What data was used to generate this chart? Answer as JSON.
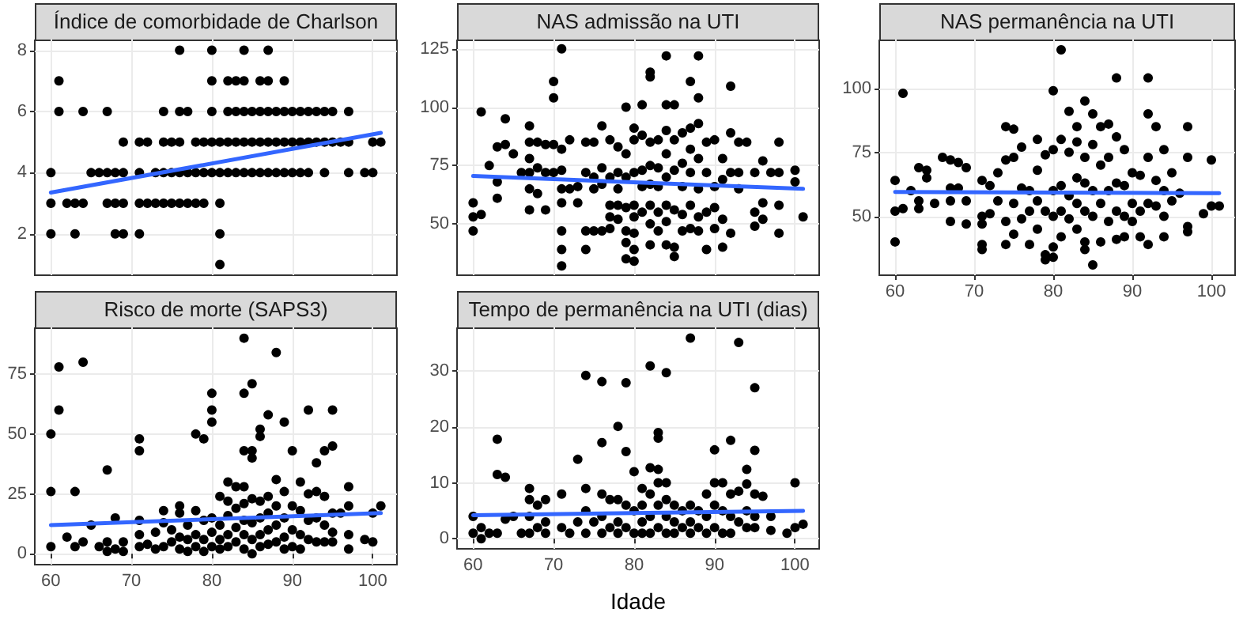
{
  "chart_data": [
    {
      "type": "scatter",
      "title": "Índice de comorbidade de Charlson",
      "xlim": [
        58,
        103
      ],
      "xticks": [
        60,
        70,
        80,
        90,
        100
      ],
      "ylim": [
        0.65,
        8.35
      ],
      "yticks": [
        2,
        4,
        6,
        8
      ],
      "grid": true,
      "tick_labels": "y",
      "series": [
        {
          "type": "scatter",
          "marker": "circle",
          "color": "#000000",
          "x": [
            76,
            80,
            84,
            87,
            61,
            80,
            82,
            83,
            84,
            86,
            87,
            89,
            61,
            64,
            67,
            74,
            76,
            77,
            80,
            82,
            83,
            84,
            85,
            86,
            87,
            88,
            89,
            90,
            91,
            92,
            93,
            94,
            95,
            97,
            69,
            71,
            72,
            74,
            75,
            76,
            78,
            79,
            80,
            81,
            82,
            83,
            84,
            85,
            86,
            87,
            88,
            89,
            90,
            91,
            92,
            93,
            94,
            95,
            96,
            97,
            100,
            101,
            60,
            65,
            66,
            67,
            68,
            69,
            71,
            73,
            74,
            75,
            76,
            77,
            78,
            79,
            80,
            81,
            82,
            83,
            84,
            85,
            86,
            87,
            88,
            89,
            90,
            91,
            92,
            94,
            97,
            99,
            100,
            60,
            62,
            63,
            64,
            67,
            68,
            69,
            71,
            72,
            73,
            74,
            75,
            76,
            77,
            78,
            79,
            81,
            60,
            63,
            68,
            69,
            71,
            81,
            81
          ],
          "values": [
            8,
            8,
            8,
            8,
            7,
            7,
            7,
            7,
            7,
            7,
            7,
            7,
            6,
            6,
            6,
            6,
            6,
            6,
            6,
            6,
            6,
            6,
            6,
            6,
            6,
            6,
            6,
            6,
            6,
            6,
            6,
            6,
            6,
            6,
            5,
            5,
            5,
            5,
            5,
            5,
            5,
            5,
            5,
            5,
            5,
            5,
            5,
            5,
            5,
            5,
            5,
            5,
            5,
            5,
            5,
            5,
            5,
            5,
            5,
            5,
            5,
            5,
            4,
            4,
            4,
            4,
            4,
            4,
            4,
            4,
            4,
            4,
            4,
            4,
            4,
            4,
            4,
            4,
            4,
            4,
            4,
            4,
            4,
            4,
            4,
            4,
            4,
            4,
            4,
            4,
            4,
            4,
            4,
            3,
            3,
            3,
            3,
            3,
            3,
            3,
            3,
            3,
            3,
            3,
            3,
            3,
            3,
            3,
            3,
            3,
            2,
            2,
            2,
            2,
            2,
            2,
            1
          ]
        },
        {
          "type": "line",
          "color": "#3366ff",
          "x": [
            60,
            101
          ],
          "values": [
            3.35,
            5.3
          ]
        }
      ]
    },
    {
      "type": "scatter",
      "title": "NAS admissão na UTI",
      "xlim": [
        58,
        103
      ],
      "xticks": [
        60,
        70,
        80,
        90,
        100
      ],
      "ylim": [
        28,
        129
      ],
      "yticks": [
        50,
        75,
        100,
        125
      ],
      "grid": true,
      "tick_labels": "y",
      "series": [
        {
          "type": "scatter",
          "marker": "circle",
          "color": "#000000",
          "x": [
            60,
            60,
            60,
            61,
            61,
            62,
            63,
            63,
            63,
            64,
            64,
            65,
            66,
            67,
            67,
            67,
            67,
            67,
            67,
            68,
            68,
            68,
            69,
            69,
            69,
            70,
            70,
            70,
            70,
            71,
            71,
            71,
            71,
            71,
            71,
            71,
            71,
            72,
            72,
            73,
            73,
            74,
            74,
            74,
            74,
            75,
            75,
            75,
            75,
            76,
            76,
            76,
            76,
            77,
            77,
            77,
            77,
            77,
            78,
            78,
            78,
            78,
            78,
            79,
            79,
            79,
            79,
            79,
            79,
            79,
            80,
            80,
            80,
            80,
            80,
            80,
            80,
            80,
            81,
            81,
            81,
            81,
            81,
            82,
            82,
            82,
            82,
            82,
            82,
            82,
            82,
            83,
            83,
            83,
            83,
            83,
            84,
            84,
            84,
            84,
            84,
            84,
            84,
            84,
            85,
            85,
            85,
            85,
            85,
            85,
            86,
            86,
            86,
            86,
            86,
            87,
            87,
            87,
            87,
            87,
            87,
            88,
            88,
            88,
            88,
            88,
            88,
            88,
            89,
            89,
            89,
            89,
            90,
            90,
            90,
            90,
            91,
            91,
            91,
            91,
            92,
            92,
            92,
            92,
            93,
            93,
            93,
            94,
            95,
            95,
            95,
            96,
            96,
            96,
            97,
            98,
            98,
            98,
            98,
            100,
            100,
            101
          ],
          "values": [
            59,
            53,
            47,
            98,
            54,
            75,
            83,
            68,
            61,
            84,
            95,
            80,
            72,
            92,
            85,
            78,
            72,
            65,
            56,
            85,
            74,
            63,
            84,
            72,
            56,
            111,
            104,
            84,
            72,
            125,
            82,
            73,
            65,
            59,
            47,
            39,
            32,
            86,
            65,
            66,
            59,
            85,
            72,
            47,
            39,
            85,
            70,
            65,
            47,
            92,
            74,
            67,
            47,
            86,
            70,
            58,
            53,
            48,
            83,
            72,
            65,
            58,
            52,
            100,
            80,
            70,
            57,
            47,
            42,
            35,
            91,
            86,
            72,
            58,
            53,
            46,
            39,
            34,
            101,
            88,
            73,
            66,
            55,
            115,
            113,
            85,
            75,
            67,
            58,
            50,
            41,
            86,
            74,
            66,
            55,
            47,
            122,
            101,
            90,
            80,
            70,
            58,
            51,
            41,
            101,
            86,
            73,
            56,
            36,
            40,
            89,
            76,
            66,
            54,
            47,
            111,
            91,
            82,
            72,
            58,
            48,
            122,
            104,
            93,
            78,
            65,
            53,
            47,
            85,
            72,
            55,
            39,
            86,
            66,
            57,
            48,
            78,
            69,
            52,
            40,
            109,
            89,
            72,
            46,
            85,
            72,
            65,
            85,
            72,
            55,
            49,
            77,
            59,
            52,
            72,
            85,
            72,
            58,
            46,
            68,
            73,
            53
          ]
        },
        {
          "type": "line",
          "color": "#3366ff",
          "x": [
            60,
            101
          ],
          "values": [
            70.5,
            65
          ]
        }
      ]
    },
    {
      "type": "scatter",
      "title": "NAS permanência na UTI",
      "xlim": [
        58,
        103
      ],
      "xticks": [
        60,
        70,
        80,
        90,
        100
      ],
      "ylim": [
        27,
        119
      ],
      "yticks": [
        50,
        75,
        100
      ],
      "grid": true,
      "series": [
        {
          "type": "scatter",
          "marker": "circle",
          "color": "#000000",
          "x": [
            60,
            60,
            60,
            61,
            61,
            62,
            63,
            63,
            63,
            64,
            64,
            65,
            66,
            67,
            67,
            67,
            67,
            68,
            68,
            69,
            69,
            69,
            71,
            71,
            71,
            71,
            71,
            72,
            72,
            73,
            73,
            74,
            74,
            74,
            74,
            75,
            75,
            75,
            75,
            76,
            76,
            76,
            77,
            77,
            77,
            78,
            78,
            78,
            78,
            79,
            79,
            79,
            79,
            80,
            80,
            80,
            80,
            80,
            80,
            81,
            81,
            81,
            81,
            81,
            82,
            82,
            82,
            82,
            83,
            83,
            83,
            83,
            83,
            84,
            84,
            84,
            84,
            84,
            84,
            85,
            85,
            85,
            85,
            85,
            86,
            86,
            86,
            86,
            87,
            87,
            87,
            87,
            88,
            88,
            88,
            88,
            88,
            89,
            89,
            89,
            89,
            90,
            90,
            90,
            91,
            91,
            91,
            92,
            92,
            92,
            92,
            92,
            93,
            93,
            93,
            94,
            94,
            94,
            94,
            95,
            95,
            96,
            97,
            97,
            97,
            97,
            99,
            100,
            100,
            101
          ],
          "values": [
            64,
            52,
            40,
            98,
            53,
            60,
            69,
            56,
            53,
            68,
            65,
            55,
            73,
            72,
            61,
            56,
            48,
            71,
            61,
            69,
            56,
            47,
            64,
            50,
            47,
            39,
            37,
            62,
            51,
            67,
            56,
            85,
            72,
            48,
            39,
            84,
            73,
            55,
            43,
            77,
            61,
            49,
            60,
            52,
            39,
            80,
            68,
            56,
            45,
            74,
            52,
            35,
            33,
            99,
            76,
            60,
            50,
            38,
            34,
            115,
            80,
            62,
            52,
            42,
            91,
            75,
            58,
            49,
            85,
            79,
            65,
            55,
            45,
            95,
            73,
            63,
            52,
            40,
            37,
            90,
            78,
            60,
            50,
            31,
            85,
            70,
            55,
            40,
            86,
            73,
            60,
            48,
            104,
            81,
            63,
            52,
            41,
            76,
            62,
            50,
            42,
            67,
            55,
            48,
            66,
            52,
            42,
            104,
            90,
            73,
            55,
            39,
            85,
            64,
            54,
            76,
            60,
            50,
            42,
            67,
            56,
            59,
            85,
            73,
            46,
            44,
            51,
            72,
            54,
            54
          ]
        },
        {
          "type": "line",
          "color": "#3366ff",
          "x": [
            60,
            101
          ],
          "values": [
            59.5,
            59
          ]
        }
      ]
    },
    {
      "type": "scatter",
      "title": "Risco de morte (SAPS3)",
      "xlim": [
        58,
        103
      ],
      "xticks": [
        60,
        70,
        80,
        90,
        100
      ],
      "ylim": [
        -4.5,
        94.5
      ],
      "yticks": [
        0,
        25,
        50,
        75
      ],
      "grid": true,
      "series": [
        {
          "type": "scatter",
          "marker": "circle",
          "color": "#000000",
          "x": [
            60,
            60,
            60,
            61,
            61,
            62,
            63,
            63,
            64,
            64,
            65,
            66,
            67,
            67,
            67,
            68,
            68,
            69,
            69,
            71,
            71,
            71,
            71,
            71,
            72,
            73,
            73,
            74,
            74,
            74,
            75,
            75,
            76,
            76,
            76,
            76,
            77,
            77,
            77,
            78,
            78,
            78,
            78,
            79,
            79,
            79,
            79,
            80,
            80,
            80,
            80,
            80,
            80,
            81,
            81,
            81,
            81,
            82,
            82,
            82,
            82,
            82,
            83,
            83,
            83,
            83,
            84,
            84,
            84,
            84,
            84,
            84,
            84,
            84,
            85,
            85,
            85,
            85,
            85,
            85,
            85,
            86,
            86,
            86,
            86,
            86,
            86,
            87,
            87,
            87,
            87,
            87,
            88,
            88,
            88,
            88,
            88,
            89,
            89,
            89,
            89,
            89,
            90,
            90,
            90,
            90,
            91,
            91,
            91,
            91,
            92,
            92,
            92,
            92,
            93,
            93,
            93,
            93,
            94,
            94,
            94,
            94,
            95,
            95,
            95,
            95,
            95,
            96,
            97,
            97,
            97,
            97,
            99,
            100,
            100,
            101
          ],
          "values": [
            50,
            26,
            3,
            78,
            60,
            7,
            26,
            3,
            80,
            5,
            12,
            3,
            35,
            5,
            1,
            15,
            2,
            5,
            1,
            48,
            43,
            14,
            8,
            3,
            4,
            2,
            9,
            18,
            13,
            3,
            10,
            5,
            20,
            17,
            7,
            2,
            12,
            6,
            1,
            50,
            18,
            8,
            3,
            48,
            14,
            6,
            1,
            67,
            60,
            55,
            15,
            9,
            3,
            24,
            12,
            6,
            2,
            30,
            22,
            16,
            8,
            3,
            28,
            19,
            11,
            5,
            90,
            67,
            43,
            28,
            21,
            14,
            8,
            2,
            71,
            43,
            40,
            23,
            13,
            6,
            0,
            52,
            49,
            22,
            15,
            8,
            3,
            58,
            24,
            17,
            10,
            4,
            84,
            31,
            20,
            12,
            5,
            55,
            26,
            15,
            7,
            2,
            43,
            20,
            10,
            3,
            30,
            18,
            8,
            2,
            60,
            25,
            14,
            6,
            38,
            26,
            15,
            5,
            43,
            24,
            12,
            5,
            60,
            45,
            17,
            9,
            5,
            17,
            28,
            20,
            8,
            2,
            6,
            17,
            5,
            20
          ]
        },
        {
          "type": "line",
          "color": "#3366ff",
          "x": [
            60,
            101
          ],
          "values": [
            12,
            17
          ]
        }
      ]
    },
    {
      "type": "scatter",
      "title": "Tempo de permanência na UTI (dias)",
      "xlabel": "Idade",
      "xlim": [
        58,
        103
      ],
      "xticks": [
        60,
        70,
        80,
        90,
        100
      ],
      "ylim": [
        -1.8,
        37.8
      ],
      "yticks": [
        0,
        10,
        20,
        30
      ],
      "grid": true,
      "series": [
        {
          "type": "scatter",
          "marker": "circle",
          "color": "#000000",
          "x": [
            60,
            60,
            61,
            61,
            62,
            63,
            63,
            63,
            64,
            64,
            65,
            66,
            67,
            67,
            67,
            67,
            68,
            68,
            69,
            69,
            69,
            71,
            71,
            72,
            73,
            73,
            74,
            74,
            74,
            74,
            75,
            76,
            76,
            76,
            76,
            76,
            77,
            77,
            78,
            78,
            78,
            78,
            79,
            79,
            79,
            79,
            80,
            80,
            80,
            81,
            81,
            81,
            81,
            82,
            82,
            82,
            82,
            82,
            83,
            83,
            83,
            83,
            83,
            83,
            84,
            84,
            84,
            84,
            84,
            85,
            85,
            85,
            86,
            86,
            87,
            87,
            87,
            87,
            88,
            88,
            89,
            89,
            89,
            90,
            90,
            90,
            90,
            91,
            91,
            91,
            92,
            92,
            92,
            92,
            93,
            93,
            93,
            94,
            94,
            94,
            94,
            95,
            95,
            95,
            95,
            95,
            96,
            97,
            97,
            99,
            100,
            100,
            101
          ],
          "values": [
            4,
            1,
            2,
            0,
            1,
            17.8,
            11.5,
            1,
            11,
            3.5,
            4,
            1,
            9,
            7,
            4,
            1,
            6,
            2,
            7,
            3,
            1,
            8,
            2,
            1,
            14.2,
            3,
            29.2,
            9,
            5,
            1,
            3,
            28.1,
            17.2,
            8,
            4,
            1,
            7,
            2,
            20.1,
            7,
            3,
            1,
            27.9,
            15.6,
            6,
            2,
            12,
            5,
            1,
            9,
            6,
            3,
            1,
            30.9,
            12.7,
            8,
            4,
            1,
            19,
            18,
            12.4,
            10,
            6,
            2,
            29.7,
            10,
            7,
            4,
            1,
            6,
            3,
            1,
            5,
            2,
            35.9,
            6,
            3,
            1,
            5,
            2,
            8,
            4,
            1,
            15.9,
            10,
            6,
            2,
            10,
            5,
            1,
            17.6,
            8,
            4,
            1,
            35.1,
            8.5,
            3,
            12.4,
            9.8,
            5,
            2,
            27,
            15.8,
            8,
            4,
            2,
            7.6,
            4,
            1.5,
            1,
            10,
            2,
            2.6
          ]
        },
        {
          "type": "line",
          "color": "#3366ff",
          "x": [
            60,
            101
          ],
          "values": [
            4.2,
            5
          ]
        }
      ]
    }
  ]
}
